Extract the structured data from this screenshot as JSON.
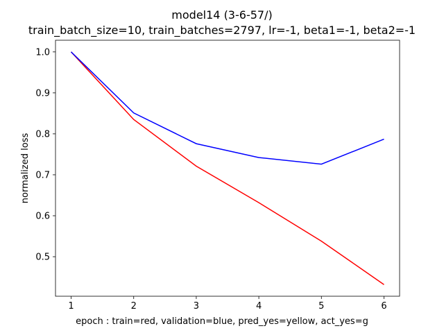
{
  "chart_data": {
    "type": "line",
    "title": "model14 (3-6-57/)",
    "subtitle": "train_batch_size=10, train_batches=2797, lr=-1, beta1=-1, beta2=-1",
    "xlabel": "epoch : train=red, validation=blue, pred_yes=yellow, act_yes=g",
    "ylabel": "normalized loss",
    "x": [
      1,
      2,
      3,
      4,
      5,
      6
    ],
    "xlim": [
      0.75,
      6.25
    ],
    "ylim": [
      0.4035,
      1.0285
    ],
    "xticks": [
      1,
      2,
      3,
      4,
      5,
      6
    ],
    "yticks": [
      0.5,
      0.6,
      0.7,
      0.8,
      0.9,
      1.0
    ],
    "ytick_labels": [
      "0.5",
      "0.6",
      "0.7",
      "0.8",
      "0.9",
      "1.0"
    ],
    "grid": false,
    "series": [
      {
        "color": "#ff0000",
        "values": [
          1.0,
          0.835,
          0.721,
          0.632,
          0.538,
          0.432
        ]
      },
      {
        "color": "#0000ff",
        "values": [
          1.0,
          0.851,
          0.776,
          0.742,
          0.726,
          0.787
        ]
      }
    ]
  }
}
